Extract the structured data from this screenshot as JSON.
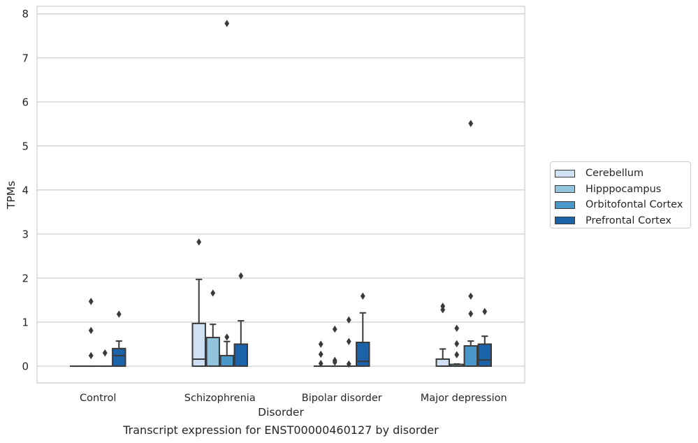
{
  "caption": "Transcript expression for ENST00000460127 by disorder",
  "chart_data": {
    "type": "box",
    "xlabel": "Disorder",
    "ylabel": "TPMs",
    "ylim": [
      -0.38,
      8.17
    ],
    "yticks": [
      0,
      1,
      2,
      3,
      4,
      5,
      6,
      7,
      8
    ],
    "grid": true,
    "legend_position": "right",
    "categories": [
      "Control",
      "Schizophrenia",
      "Bipolar disorder",
      "Major depression"
    ],
    "series": [
      {
        "name": "Cerebellum",
        "color": "#cfe1f2",
        "boxes": [
          {
            "whislo": 0,
            "q1": 0,
            "med": 0,
            "q3": 0,
            "whishi": 0,
            "fliers": []
          },
          {
            "whislo": 0,
            "q1": 0,
            "med": 0.16,
            "q3": 0.97,
            "whishi": 1.97,
            "fliers": [
              2.82
            ]
          },
          {
            "whislo": 0,
            "q1": 0,
            "med": 0,
            "q3": 0,
            "whishi": 0,
            "fliers": [
              0.5,
              0.27,
              0.06
            ]
          },
          {
            "whislo": 0,
            "q1": 0,
            "med": 0,
            "q3": 0.16,
            "whishi": 0.39,
            "fliers": [
              1.36,
              1.28
            ]
          }
        ]
      },
      {
        "name": "Hipppocampus",
        "color": "#93c4de",
        "boxes": [
          {
            "whislo": 0,
            "q1": 0,
            "med": 0,
            "q3": 0,
            "whishi": 0,
            "fliers": [
              1.47,
              0.81,
              0.24
            ]
          },
          {
            "whislo": 0,
            "q1": 0,
            "med": 0,
            "q3": 0.65,
            "whishi": 0.95,
            "fliers": [
              1.66
            ]
          },
          {
            "whislo": 0,
            "q1": 0,
            "med": 0,
            "q3": 0,
            "whishi": 0,
            "fliers": [
              0.84,
              0.13,
              0.09
            ]
          },
          {
            "whislo": 0,
            "q1": 0,
            "med": 0,
            "q3": 0.04,
            "whishi": 0.05,
            "fliers": [
              0.86,
              0.51,
              0.26
            ]
          }
        ]
      },
      {
        "name": "Orbitofontal Cortex",
        "color": "#4a98c9",
        "boxes": [
          {
            "whislo": 0,
            "q1": 0,
            "med": 0,
            "q3": 0,
            "whishi": 0,
            "fliers": [
              0.3
            ]
          },
          {
            "whislo": 0,
            "q1": 0,
            "med": 0,
            "q3": 0.24,
            "whishi": 0.56,
            "fliers": [
              7.78,
              0.66
            ]
          },
          {
            "whislo": 0,
            "q1": 0,
            "med": 0,
            "q3": 0,
            "whishi": 0,
            "fliers": [
              1.05,
              0.56,
              0.05
            ]
          },
          {
            "whislo": 0,
            "q1": 0,
            "med": 0,
            "q3": 0.46,
            "whishi": 0.57,
            "fliers": [
              5.51,
              1.59,
              1.19
            ]
          }
        ]
      },
      {
        "name": "Prefrontal Cortex",
        "color": "#1b62a8",
        "boxes": [
          {
            "whislo": 0,
            "q1": 0,
            "med": 0.24,
            "q3": 0.4,
            "whishi": 0.57,
            "fliers": [
              1.18
            ]
          },
          {
            "whislo": 0,
            "q1": 0,
            "med": 0,
            "q3": 0.5,
            "whishi": 1.03,
            "fliers": [
              2.05
            ]
          },
          {
            "whislo": 0,
            "q1": 0,
            "med": 0.11,
            "q3": 0.54,
            "whishi": 1.21,
            "fliers": [
              1.59
            ]
          },
          {
            "whislo": 0,
            "q1": 0,
            "med": 0.14,
            "q3": 0.5,
            "whishi": 0.68,
            "fliers": [
              1.24
            ]
          }
        ]
      }
    ]
  }
}
